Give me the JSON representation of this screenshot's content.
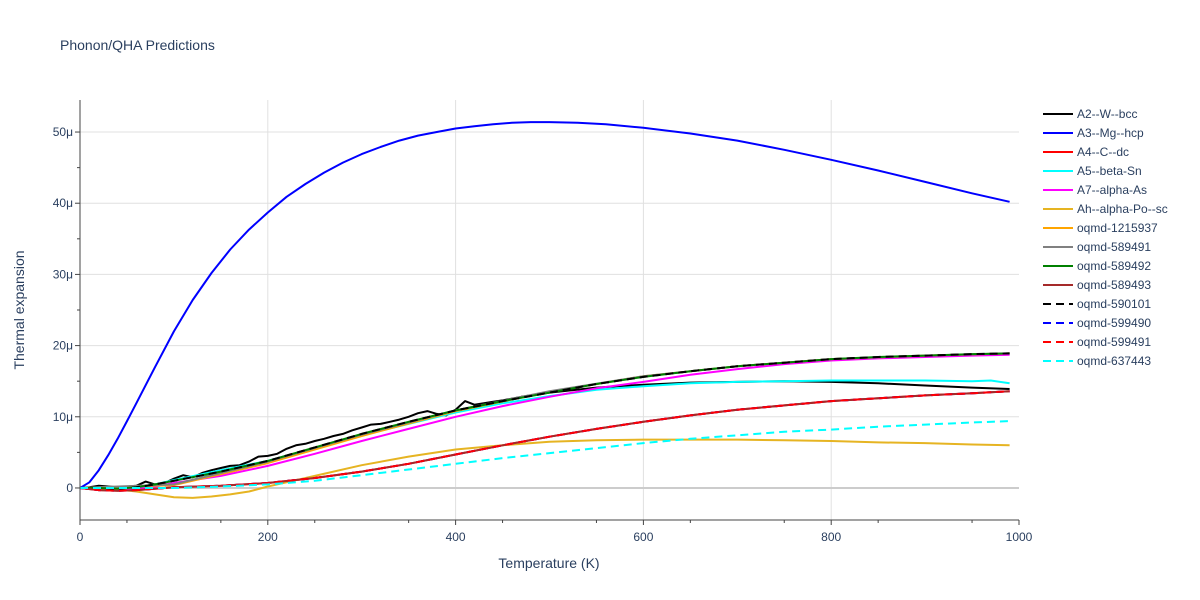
{
  "chart_data": {
    "type": "line",
    "title": "Phonon/QHA Predictions",
    "xlabel": "Temperature (K)",
    "ylabel": "Thermal expansion",
    "xlim": [
      0,
      1000
    ],
    "ylim": [
      -4.5,
      54.5
    ],
    "xticks": [
      0,
      200,
      400,
      600,
      800,
      1000
    ],
    "xtick_labels": [
      "0",
      "200",
      "400",
      "600",
      "800",
      "1000"
    ],
    "yticks": [
      0,
      10,
      20,
      30,
      40,
      50
    ],
    "ytick_labels": [
      "0",
      "10μ",
      "20μ",
      "30μ",
      "40μ",
      "50μ"
    ],
    "grid": true,
    "legend_position": "right",
    "series": [
      {
        "name": "A2--W--bcc",
        "color": "#000000",
        "dash": "solid",
        "x": [
          0,
          10,
          20,
          30,
          40,
          50,
          60,
          70,
          80,
          90,
          100,
          110,
          120,
          130,
          140,
          150,
          160,
          170,
          180,
          190,
          200,
          210,
          220,
          230,
          240,
          250,
          260,
          270,
          280,
          290,
          300,
          310,
          320,
          330,
          340,
          350,
          360,
          370,
          380,
          390,
          400,
          410,
          420,
          430,
          440,
          450,
          470,
          500,
          550,
          600,
          650,
          700,
          750,
          800,
          850,
          900,
          950,
          990
        ],
        "y": [
          0,
          0.1,
          0.3,
          0.2,
          0.1,
          0.2,
          0.3,
          0.9,
          0.5,
          0.7,
          1.3,
          1.8,
          1.5,
          2.1,
          2.5,
          2.8,
          3.1,
          3.2,
          3.7,
          4.4,
          4.5,
          4.8,
          5.5,
          6.0,
          6.2,
          6.6,
          6.9,
          7.3,
          7.6,
          8.1,
          8.5,
          8.9,
          9.0,
          9.3,
          9.6,
          10.0,
          10.5,
          10.8,
          10.4,
          10.2,
          11.0,
          12.2,
          11.7,
          11.9,
          12.1,
          12.3,
          12.8,
          13.4,
          14.1,
          14.5,
          14.8,
          14.9,
          15.0,
          14.9,
          14.7,
          14.4,
          14.1,
          13.9
        ]
      },
      {
        "name": "A3--Mg--hcp",
        "color": "#0000ff",
        "dash": "solid",
        "x": [
          0,
          10,
          20,
          30,
          40,
          50,
          60,
          80,
          100,
          120,
          140,
          160,
          180,
          200,
          220,
          240,
          260,
          280,
          300,
          320,
          340,
          360,
          380,
          400,
          420,
          440,
          460,
          480,
          500,
          530,
          560,
          600,
          650,
          700,
          750,
          800,
          850,
          900,
          950,
          990
        ],
        "y": [
          0,
          0.8,
          2.5,
          4.6,
          6.9,
          9.4,
          11.9,
          17.0,
          22.0,
          26.4,
          30.2,
          33.5,
          36.3,
          38.7,
          40.9,
          42.7,
          44.3,
          45.7,
          46.9,
          47.9,
          48.8,
          49.5,
          50.0,
          50.5,
          50.8,
          51.1,
          51.3,
          51.4,
          51.4,
          51.3,
          51.1,
          50.6,
          49.8,
          48.8,
          47.5,
          46.1,
          44.6,
          43.0,
          41.4,
          40.2
        ]
      },
      {
        "name": "A4--C--dc",
        "color": "#ff0000",
        "dash": "solid",
        "x": [
          0,
          20,
          40,
          60,
          80,
          100,
          150,
          200,
          250,
          300,
          350,
          400,
          450,
          500,
          550,
          600,
          650,
          700,
          750,
          800,
          850,
          900,
          950,
          990
        ],
        "y": [
          0,
          -0.3,
          -0.4,
          -0.3,
          -0.1,
          0.1,
          0.3,
          0.7,
          1.4,
          2.3,
          3.4,
          4.7,
          6.0,
          7.2,
          8.3,
          9.3,
          10.2,
          11.0,
          11.6,
          12.2,
          12.6,
          13.0,
          13.3,
          13.6
        ]
      },
      {
        "name": "A5--beta-Sn",
        "color": "#00ffff",
        "dash": "solid",
        "x": [
          0,
          20,
          40,
          60,
          80,
          100,
          150,
          200,
          250,
          300,
          350,
          400,
          450,
          500,
          550,
          600,
          650,
          700,
          750,
          800,
          850,
          900,
          950,
          970,
          990
        ],
        "y": [
          0,
          0,
          -0.1,
          0.1,
          0.5,
          1.1,
          2.5,
          3.8,
          5.6,
          7.4,
          9.0,
          10.6,
          11.9,
          12.9,
          13.8,
          14.3,
          14.7,
          14.9,
          15.0,
          15.1,
          15.1,
          15.1,
          15.0,
          15.1,
          14.7
        ]
      },
      {
        "name": "A7--alpha-As",
        "color": "#ff00ff",
        "dash": "solid",
        "x": [
          0,
          20,
          40,
          60,
          80,
          100,
          150,
          200,
          250,
          300,
          350,
          400,
          450,
          500,
          550,
          600,
          650,
          700,
          750,
          800,
          850,
          900,
          950,
          990
        ],
        "y": [
          0,
          -0.2,
          -0.3,
          -0.2,
          0.2,
          0.7,
          1.7,
          3.1,
          4.8,
          6.6,
          8.3,
          10.0,
          11.5,
          12.8,
          14.0,
          14.9,
          15.9,
          16.7,
          17.4,
          17.9,
          18.2,
          18.4,
          18.6,
          18.7
        ]
      },
      {
        "name": "Ah--alpha-Po--sc",
        "color": "#e6b422",
        "dash": "solid",
        "x": [
          0,
          20,
          40,
          60,
          80,
          100,
          120,
          140,
          160,
          180,
          200,
          220,
          250,
          300,
          350,
          400,
          450,
          500,
          550,
          600,
          650,
          700,
          750,
          800,
          850,
          900,
          950,
          990
        ],
        "y": [
          0,
          -0.1,
          -0.2,
          -0.5,
          -0.9,
          -1.3,
          -1.4,
          -1.2,
          -0.9,
          -0.5,
          0.2,
          0.8,
          1.7,
          3.2,
          4.4,
          5.4,
          6.0,
          6.5,
          6.7,
          6.8,
          6.8,
          6.8,
          6.7,
          6.6,
          6.4,
          6.3,
          6.1,
          6.0
        ]
      },
      {
        "name": "oqmd-1215937",
        "color": "#ffa500",
        "dash": "solid",
        "x": [
          0,
          100,
          200,
          300,
          400,
          500,
          600,
          700,
          800,
          900,
          990
        ],
        "y": [
          0,
          0.4,
          3.5,
          7.3,
          10.8,
          13.5,
          15.7,
          17.1,
          18.1,
          18.6,
          18.9
        ]
      },
      {
        "name": "oqmd-589491",
        "color": "#808080",
        "dash": "solid",
        "x": [
          0,
          100,
          200,
          300,
          400,
          500,
          600,
          700,
          800,
          900,
          990
        ],
        "y": [
          0,
          0.5,
          3.7,
          7.5,
          10.9,
          13.6,
          15.7,
          17.1,
          18.1,
          18.6,
          18.9
        ]
      },
      {
        "name": "oqmd-589492",
        "color": "#008000",
        "dash": "solid",
        "x": [
          0,
          20,
          40,
          60,
          80,
          100,
          150,
          200,
          250,
          300,
          350,
          400,
          450,
          500,
          550,
          600,
          650,
          700,
          750,
          800,
          850,
          900,
          950,
          990
        ],
        "y": [
          0,
          0,
          -0.1,
          0.1,
          0.5,
          1.0,
          2.3,
          3.8,
          5.7,
          7.6,
          9.3,
          10.9,
          12.2,
          13.4,
          14.6,
          15.6,
          16.4,
          17.1,
          17.6,
          18.1,
          18.4,
          18.6,
          18.8,
          18.9
        ]
      },
      {
        "name": "oqmd-589493",
        "color": "#a52a2a",
        "dash": "solid",
        "x": [
          0,
          20,
          40,
          60,
          80,
          100,
          150,
          200,
          250,
          300,
          350,
          400,
          450,
          500,
          550,
          600,
          650,
          700,
          750,
          800,
          850,
          900,
          950,
          990
        ],
        "y": [
          0,
          -0.3,
          -0.4,
          -0.3,
          -0.1,
          0.1,
          0.3,
          0.7,
          1.4,
          2.3,
          3.4,
          4.7,
          6.0,
          7.2,
          8.3,
          9.3,
          10.2,
          11.0,
          11.6,
          12.2,
          12.6,
          13.0,
          13.3,
          13.6
        ]
      },
      {
        "name": "oqmd-590101",
        "color": "#000000",
        "dash": "dash",
        "x": [
          0,
          20,
          40,
          60,
          80,
          100,
          150,
          200,
          250,
          300,
          350,
          400,
          450,
          500,
          550,
          600,
          650,
          700,
          750,
          800,
          850,
          900,
          950,
          990
        ],
        "y": [
          0,
          0,
          -0.1,
          0.1,
          0.5,
          1.0,
          2.3,
          3.8,
          5.7,
          7.6,
          9.3,
          10.9,
          12.2,
          13.4,
          14.6,
          15.6,
          16.4,
          17.1,
          17.6,
          18.1,
          18.4,
          18.6,
          18.8,
          18.9
        ]
      },
      {
        "name": "oqmd-599490",
        "color": "#0000ff",
        "dash": "dash",
        "x": [
          0,
          20,
          40,
          60,
          80,
          100,
          150,
          200,
          250,
          300,
          350,
          400,
          450,
          500,
          550,
          600,
          650,
          700,
          750,
          800,
          850,
          900,
          950,
          990
        ],
        "y": [
          0,
          -0.3,
          -0.4,
          -0.3,
          -0.1,
          0.1,
          0.3,
          0.7,
          1.4,
          2.3,
          3.4,
          4.7,
          6.0,
          7.2,
          8.3,
          9.3,
          10.2,
          11.0,
          11.6,
          12.2,
          12.6,
          13.0,
          13.3,
          13.6
        ]
      },
      {
        "name": "oqmd-599491",
        "color": "#ff0000",
        "dash": "dash",
        "x": [
          0,
          20,
          40,
          60,
          80,
          100,
          150,
          200,
          250,
          300,
          350,
          400,
          450,
          500,
          550,
          600,
          650,
          700,
          750,
          800,
          850,
          900,
          950,
          990
        ],
        "y": [
          0,
          -0.3,
          -0.4,
          -0.3,
          -0.1,
          0.1,
          0.3,
          0.7,
          1.4,
          2.3,
          3.4,
          4.7,
          6.0,
          7.2,
          8.3,
          9.3,
          10.2,
          11.0,
          11.6,
          12.2,
          12.6,
          13.0,
          13.3,
          13.6
        ]
      },
      {
        "name": "oqmd-637443",
        "color": "#00ffff",
        "dash": "dash",
        "x": [
          0,
          50,
          100,
          150,
          200,
          250,
          300,
          350,
          400,
          450,
          500,
          550,
          600,
          650,
          700,
          750,
          800,
          850,
          900,
          950,
          990
        ],
        "y": [
          0,
          0,
          0,
          0.2,
          0.5,
          1.0,
          1.8,
          2.6,
          3.4,
          4.2,
          4.9,
          5.6,
          6.3,
          6.9,
          7.4,
          7.9,
          8.2,
          8.6,
          8.9,
          9.2,
          9.4
        ]
      }
    ]
  }
}
